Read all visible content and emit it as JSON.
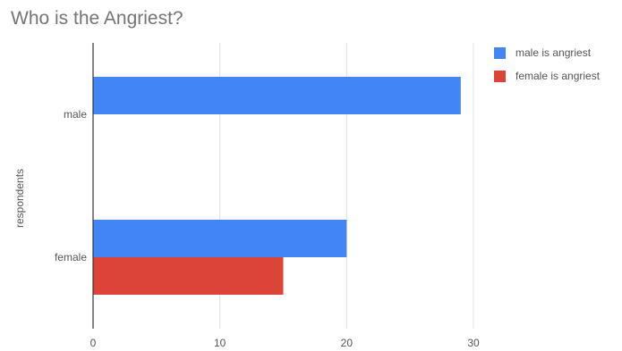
{
  "chart_data": {
    "type": "bar",
    "orientation": "horizontal",
    "title": "Who is the Angriest?",
    "xlabel": "",
    "ylabel": "respondents",
    "categories": [
      "male",
      "female"
    ],
    "series": [
      {
        "name": "male is angriest",
        "color": "#4285f4",
        "values": [
          29,
          20
        ]
      },
      {
        "name": "female is angriest",
        "color": "#db4437",
        "values": [
          0,
          15
        ]
      }
    ],
    "xlim": [
      0,
      30
    ],
    "xticks": [
      0,
      10,
      20,
      30
    ],
    "grid": true,
    "legend_position": "right"
  }
}
